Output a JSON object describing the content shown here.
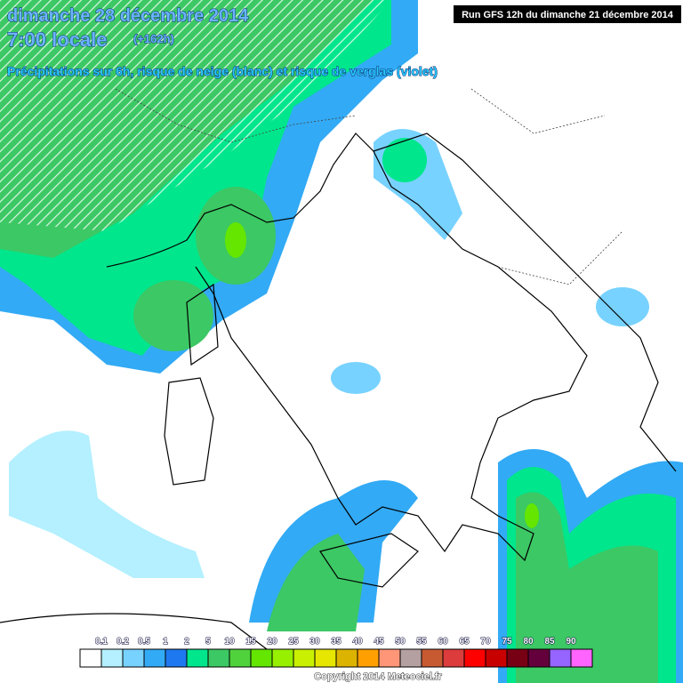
{
  "header": {
    "date": "dimanche 28 décembre 2014",
    "time": "7:00 locale",
    "lead": "(+162h)",
    "subtitle": "Précipitations sur 6h, risque de neige (blanc) et risque de verglas (violet)",
    "run": "Run GFS 12h du dimanche 21 décembre 2014"
  },
  "legend": {
    "labels": [
      "0.1",
      "0.2",
      "0.5",
      "1",
      "2",
      "5",
      "10",
      "15",
      "20",
      "25",
      "30",
      "35",
      "40",
      "45",
      "50",
      "55",
      "60",
      "65",
      "70",
      "75",
      "80",
      "85",
      "90"
    ],
    "colors": [
      "#ffffff",
      "#b4f0ff",
      "#78d2ff",
      "#32aaf5",
      "#1e78f0",
      "#00e68c",
      "#3cc864",
      "#50d23c",
      "#64e600",
      "#96f000",
      "#c8f000",
      "#e6e600",
      "#dcb400",
      "#ffa000",
      "#ff9678",
      "#b4a0a0",
      "#c85a32",
      "#dc3c3c",
      "#ff0000",
      "#c80000",
      "#780014",
      "#64003c",
      "#9664ff",
      "#ff64ff"
    ]
  },
  "footer": {
    "copyright": "Copyright 2014 Meteociel.fr"
  }
}
